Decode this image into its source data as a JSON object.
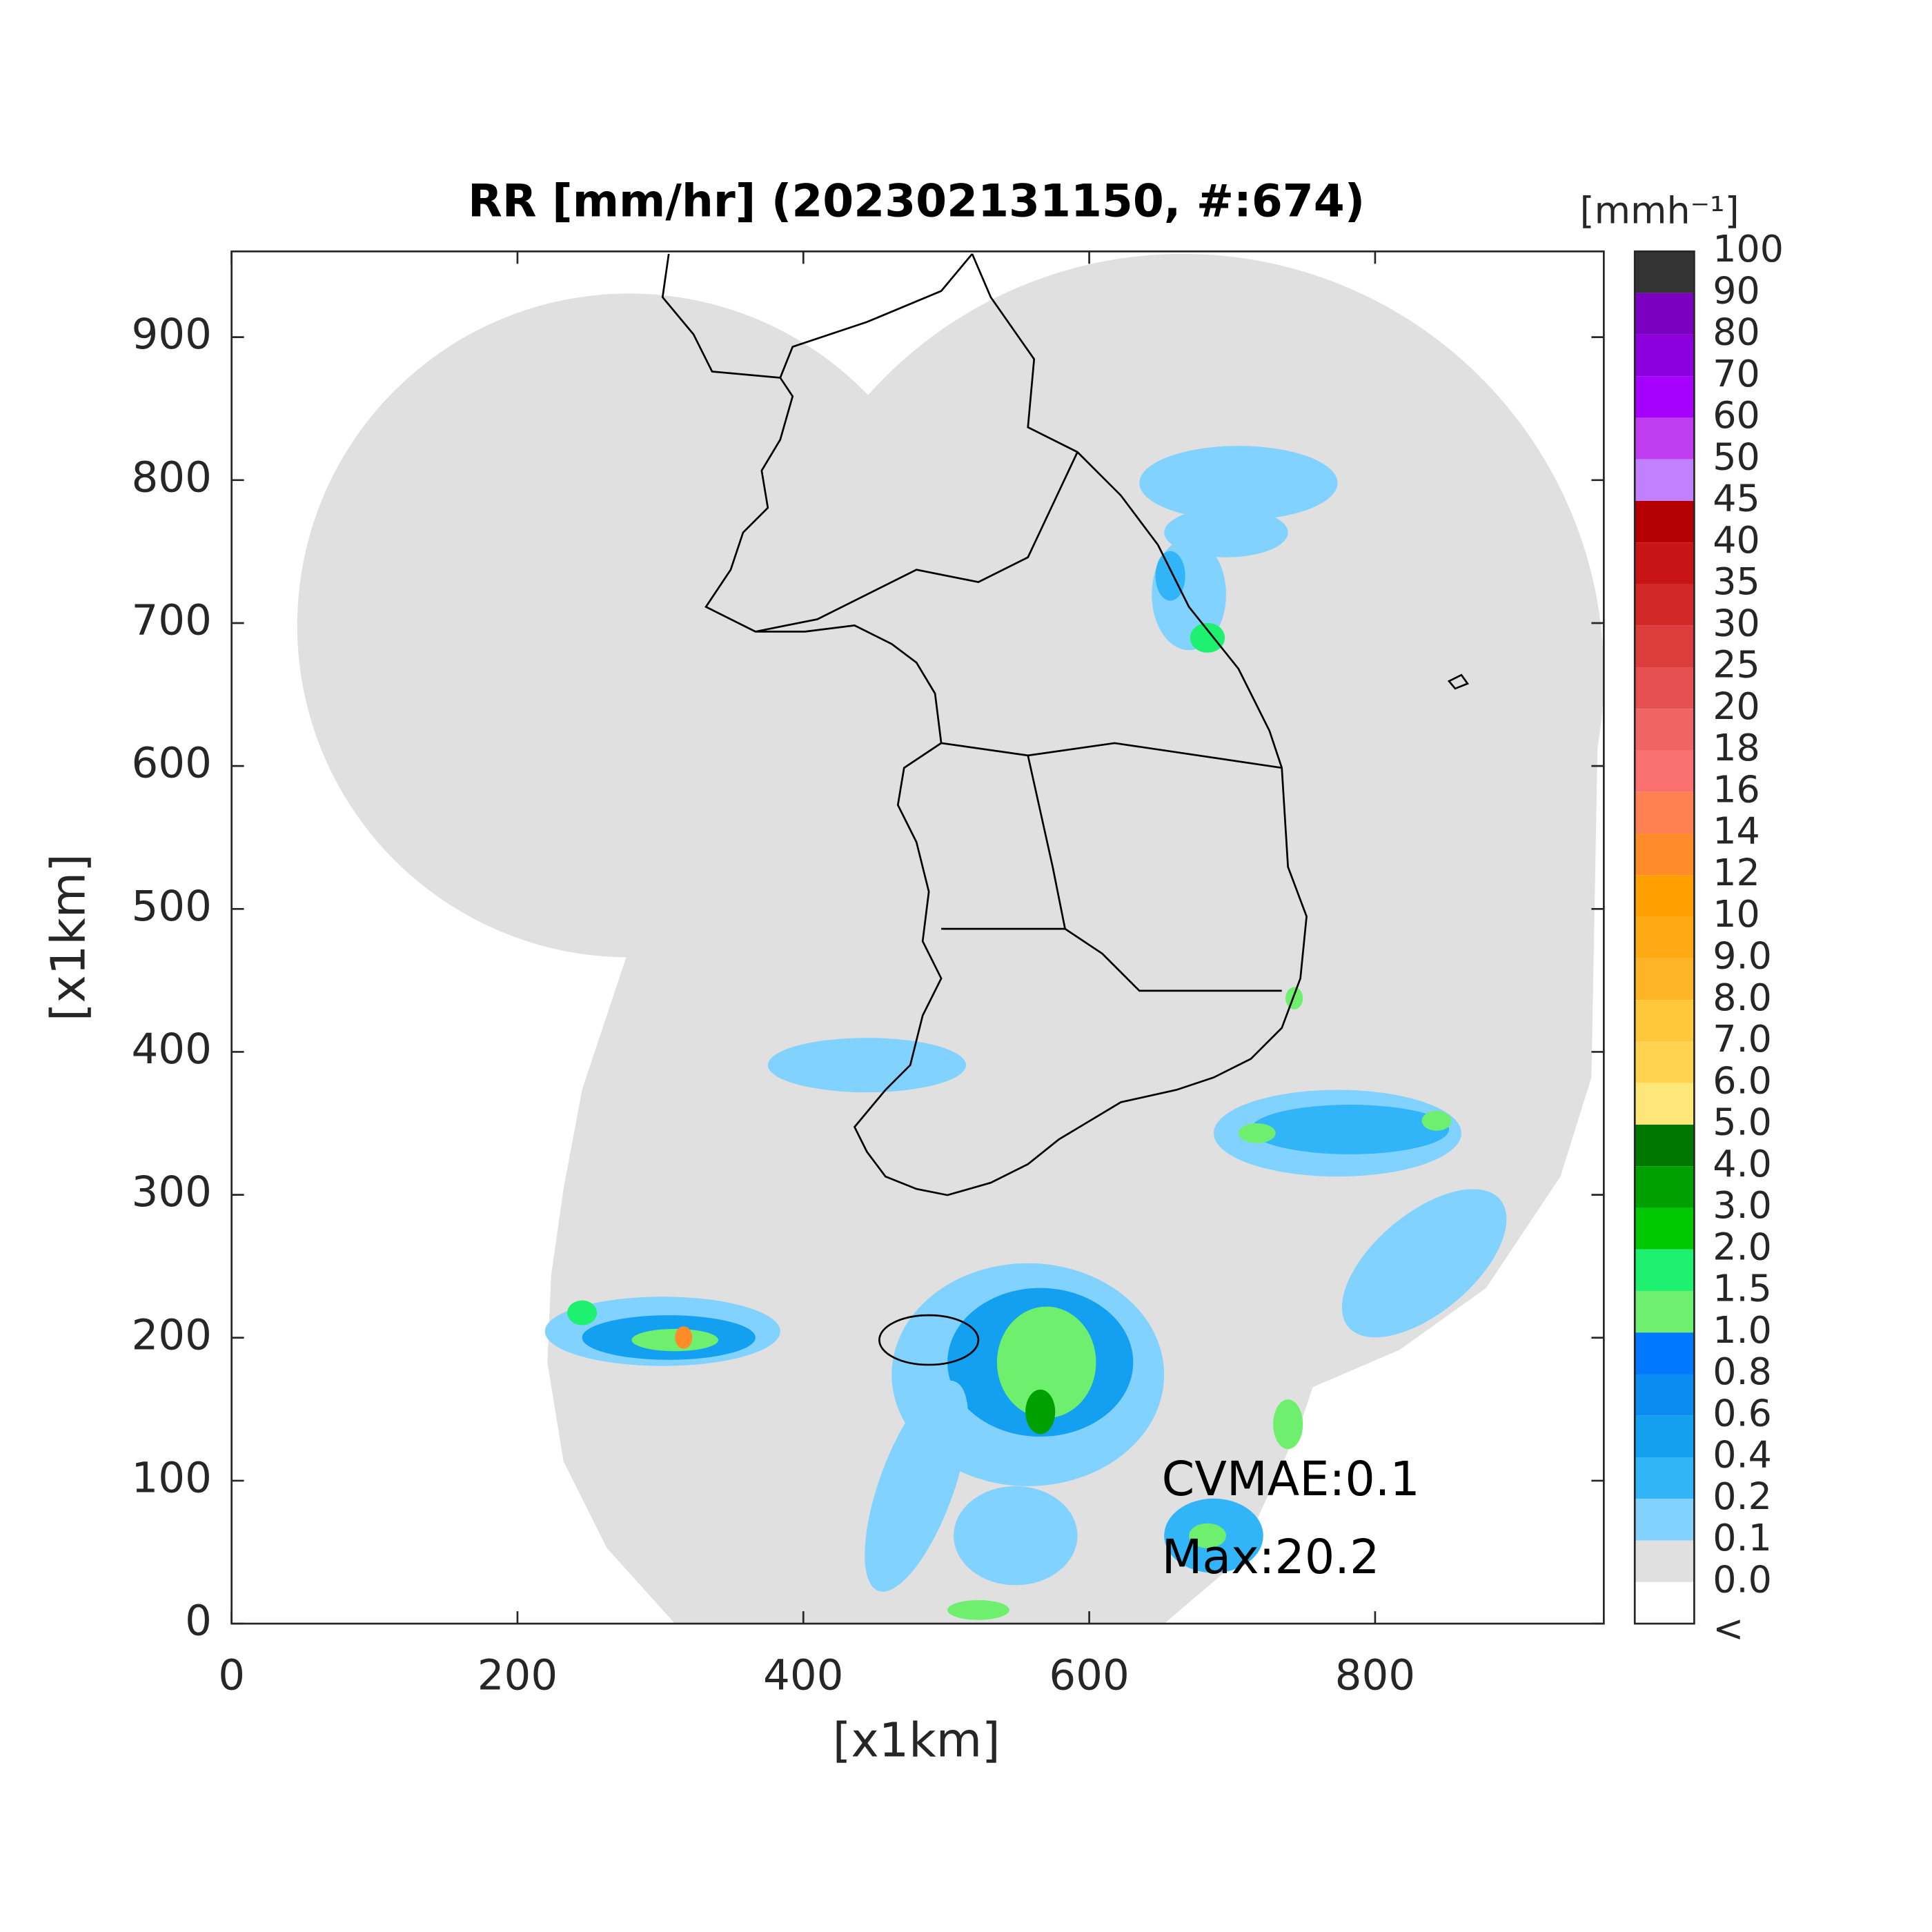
{
  "chart_data": {
    "type": "map",
    "title": "RR [mm/hr] (202302131150, #:674)",
    "xlabel": "[x1km]",
    "ylabel": "[x1km]",
    "xlim": [
      0,
      960
    ],
    "ylim": [
      0,
      960
    ],
    "xticks": [
      0,
      200,
      400,
      600,
      800
    ],
    "yticks": [
      0,
      100,
      200,
      300,
      400,
      500,
      600,
      700,
      800,
      900
    ],
    "annotations": [
      "CVMAE:0.1",
      "Max:20.2"
    ],
    "colorbar": {
      "title": "[mmh⁻¹]",
      "labels": [
        100,
        90,
        80,
        70,
        60,
        50,
        45,
        40,
        35,
        30,
        25,
        20,
        18,
        16,
        14,
        12,
        10,
        {
          "value": 9,
          "label": "9.0"
        },
        {
          "value": 8,
          "label": "8.0"
        },
        {
          "value": 7,
          "label": "7.0"
        },
        {
          "value": 6,
          "label": "6.0"
        },
        {
          "value": 5,
          "label": "5.0"
        },
        {
          "value": 4,
          "label": "4.0"
        },
        {
          "value": 3,
          "label": "3.0"
        },
        {
          "value": 2,
          "label": "2.0"
        },
        1.5,
        {
          "value": 1,
          "label": "1.0"
        },
        0.8,
        0.6,
        0.4,
        0.2,
        0.1,
        {
          "value": 0,
          "label": "0.0"
        },
        "<"
      ],
      "colors": [
        "#333333",
        "#7b00c0",
        "#8c00e0",
        "#a600ff",
        "#c03cf0",
        "#c080ff",
        "#b40000",
        "#c81414",
        "#d22828",
        "#dc3c3c",
        "#e65050",
        "#f06464",
        "#fa7070",
        "#ff8050",
        "#ff8c28",
        "#ffa000",
        "#ffaa14",
        "#ffb428",
        "#ffc83c",
        "#ffd250",
        "#ffe678",
        "#007800",
        "#00a000",
        "#00c800",
        "#1ef070",
        "#6ef06e",
        "#0078ff",
        "#0a8cf0",
        "#14a0f0",
        "#32b4f8",
        "#82d2ff",
        "#e0e0e0",
        "#ffffff"
      ]
    }
  }
}
